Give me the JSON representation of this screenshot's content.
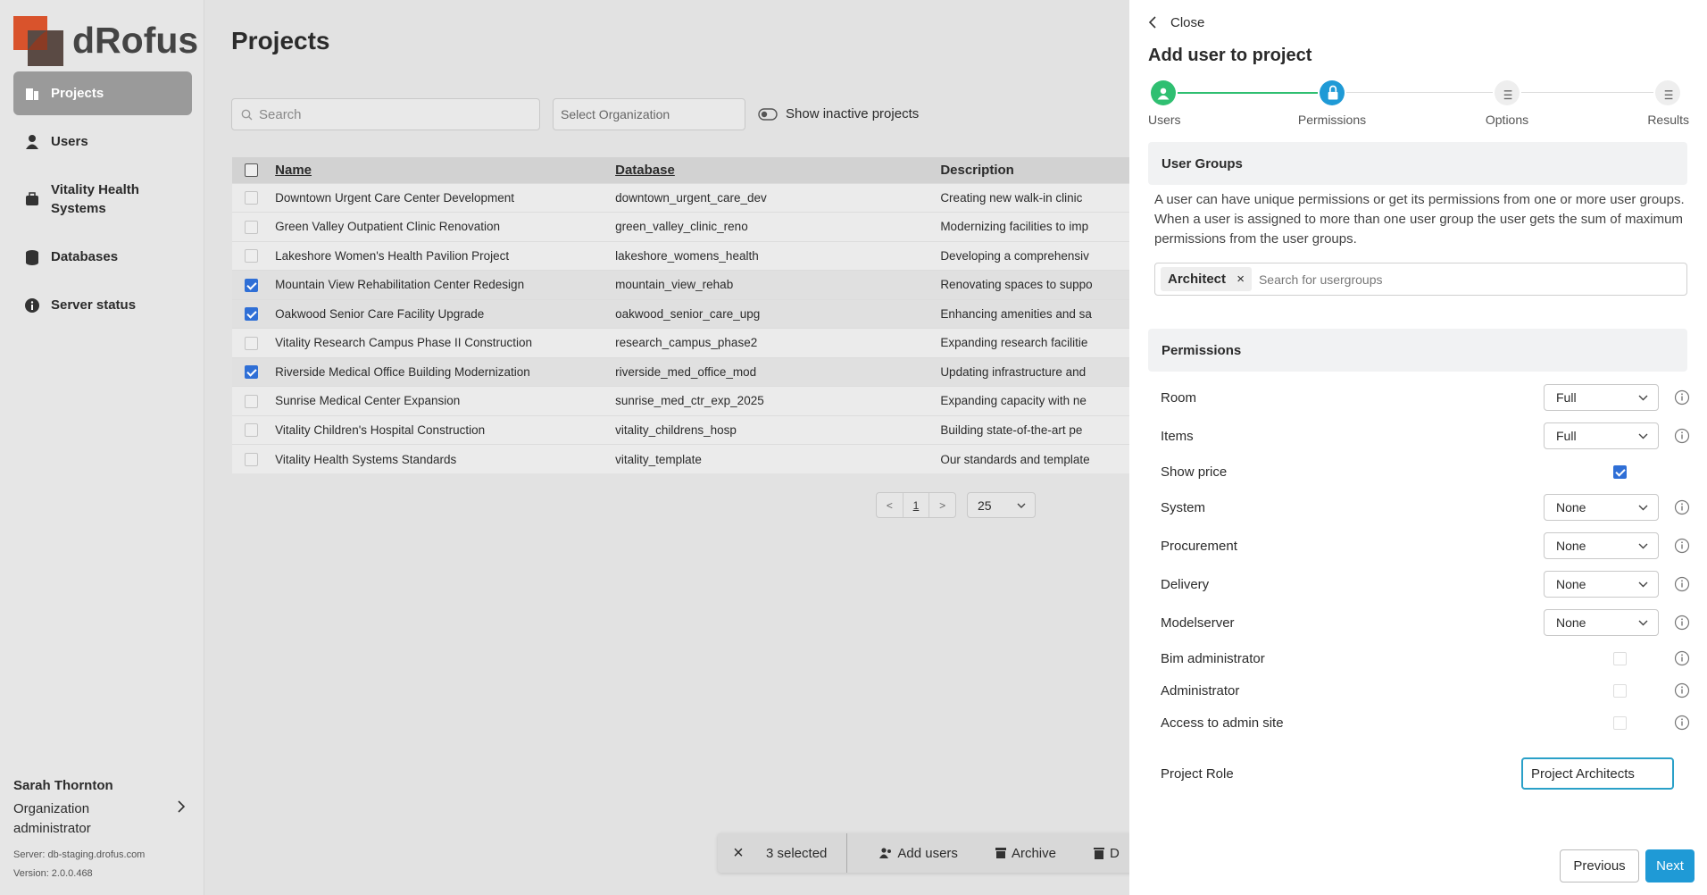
{
  "sidebar": {
    "logo": "dRofus",
    "nav": [
      {
        "label": "Projects",
        "active": true
      },
      {
        "label": "Users",
        "active": false
      },
      {
        "label": "Vitality Health Systems",
        "active": false
      },
      {
        "label": "Databases",
        "active": false
      },
      {
        "label": "Server status",
        "active": false
      }
    ],
    "user": {
      "name": "Sarah Thornton",
      "role": "Organization administrator",
      "server": "Server: db-staging.drofus.com",
      "version": "Version: 2.0.0.468"
    }
  },
  "main": {
    "title": "Projects",
    "search_placeholder": "Search",
    "org_placeholder": "Select Organization",
    "toggle_label": "Show inactive projects",
    "table": {
      "columns": [
        "Name",
        "Database",
        "Description"
      ],
      "rows": [
        {
          "name": "Downtown Urgent Care Center Development",
          "database": "downtown_urgent_care_dev",
          "description": "Creating new walk-in clinic",
          "checked": false
        },
        {
          "name": "Green Valley Outpatient Clinic Renovation",
          "database": "green_valley_clinic_reno",
          "description": "Modernizing facilities to imp",
          "checked": false
        },
        {
          "name": "Lakeshore Women's Health Pavilion Project",
          "database": "lakeshore_womens_health",
          "description": "Developing a comprehensiv",
          "checked": false
        },
        {
          "name": "Mountain View Rehabilitation Center Redesign",
          "database": "mountain_view_rehab",
          "description": "Renovating spaces to suppo",
          "checked": true
        },
        {
          "name": "Oakwood Senior Care Facility Upgrade",
          "database": "oakwood_senior_care_upg",
          "description": "Enhancing amenities and sa",
          "checked": true
        },
        {
          "name": "Vitality Research Campus Phase II Construction",
          "database": "research_campus_phase2",
          "description": "Expanding research facilitie",
          "checked": false
        },
        {
          "name": "Riverside Medical Office Building Modernization",
          "database": "riverside_med_office_mod",
          "description": "Updating infrastructure and",
          "checked": true
        },
        {
          "name": "Sunrise Medical Center Expansion",
          "database": "sunrise_med_ctr_exp_2025",
          "description": "Expanding capacity with ne",
          "checked": false
        },
        {
          "name": "Vitality Children's Hospital Construction",
          "database": "vitality_childrens_hosp",
          "description": "Building state-of-the-art pe",
          "checked": false
        },
        {
          "name": "Vitality Health Systems Standards",
          "database": "vitality_template",
          "description": "Our standards and template",
          "checked": false
        }
      ]
    },
    "pagination": {
      "prev": "<",
      "page": "1",
      "next": ">",
      "page_size": "25"
    },
    "selection_bar": {
      "count": "3 selected",
      "actions": [
        "Add users",
        "Archive",
        "D"
      ]
    }
  },
  "panel": {
    "close": "Close",
    "title": "Add user to project",
    "steps": [
      {
        "label": "Users",
        "state": "done"
      },
      {
        "label": "Permissions",
        "state": "current"
      },
      {
        "label": "Options",
        "state": "pending"
      },
      {
        "label": "Results",
        "state": "pending"
      }
    ],
    "user_groups": {
      "heading": "User Groups",
      "description": "A user can have unique permissions or get its permissions from one or more user groups. When a user is assigned to more than one user group the user gets the sum of maximum permissions from the user groups.",
      "tag": "Architect",
      "tag_remove": "×",
      "placeholder": "Search for usergroups"
    },
    "permissions": {
      "heading": "Permissions",
      "rows": [
        {
          "label": "Room",
          "control": "select",
          "value": "Full",
          "info": true
        },
        {
          "label": "Items",
          "control": "select",
          "value": "Full",
          "info": true
        },
        {
          "label": "Show price",
          "control": "checkbox",
          "checked": true,
          "info": false
        },
        {
          "label": "System",
          "control": "select",
          "value": "None",
          "info": true
        },
        {
          "label": "Procurement",
          "control": "select",
          "value": "None",
          "info": true
        },
        {
          "label": "Delivery",
          "control": "select",
          "value": "None",
          "info": true
        },
        {
          "label": "Modelserver",
          "control": "select",
          "value": "None",
          "info": true
        },
        {
          "label": "Bim administrator",
          "control": "checkbox",
          "checked": false,
          "info": true
        },
        {
          "label": "Administrator",
          "control": "checkbox",
          "checked": false,
          "info": true
        },
        {
          "label": "Access to admin site",
          "control": "checkbox",
          "checked": false,
          "info": true
        }
      ]
    },
    "project_role": {
      "label": "Project Role",
      "value": "Project Architects"
    },
    "buttons": {
      "previous": "Previous",
      "next": "Next"
    }
  }
}
